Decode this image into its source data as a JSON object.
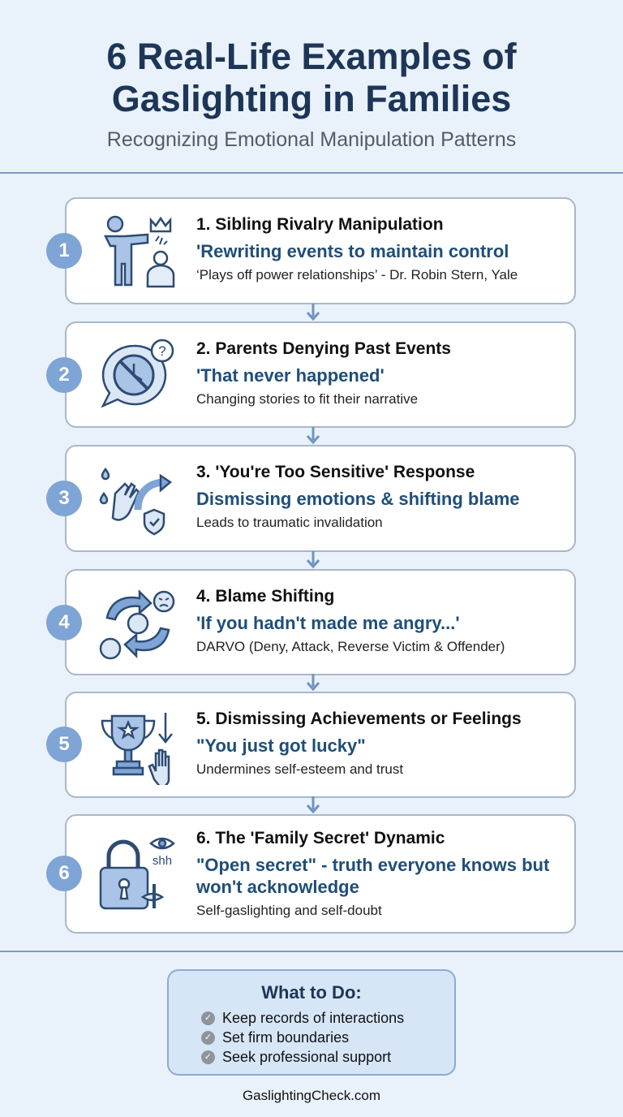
{
  "header": {
    "title_line1": "6 Real-Life Examples of",
    "title_line2": "Gaslighting in Families",
    "subtitle": "Recognizing Emotional Manipulation Patterns"
  },
  "accent_color": "#1f4e79",
  "badge_color": "#7fa4d6",
  "examples": [
    {
      "number": "1",
      "title": "1. Sibling Rivalry Manipulation",
      "quote": "'Rewriting events to maintain control",
      "description": "‘Plays off power relationships’ - Dr. Robin Stern, Yale",
      "icon": "person-pointing-crown-icon"
    },
    {
      "number": "2",
      "title": "2. Parents Denying Past Events",
      "quote": "'That never happened'",
      "description": "Changing stories to fit their narrative",
      "icon": "crossed-clock-question-icon"
    },
    {
      "number": "3",
      "title": "3. 'You're Too Sensitive' Response",
      "quote": "Dismissing emotions & shifting blame",
      "description": "Leads to traumatic invalidation",
      "icon": "hand-tear-shield-icon"
    },
    {
      "number": "4",
      "title": "4. Blame Shifting",
      "quote": "'If you hadn't made me angry...'",
      "description": "DARVO (Deny, Attack, Reverse Victim & Offender)",
      "icon": "cycle-arrows-angry-icon"
    },
    {
      "number": "5",
      "title": "5. Dismissing Achievements or Feelings",
      "quote": "\"You just got lucky\"",
      "description": "Undermines self-esteem and trust",
      "icon": "trophy-down-arrow-icon"
    },
    {
      "number": "6",
      "title": "6. The 'Family Secret' Dynamic",
      "quote": "\"Open secret\" - truth everyone knows but won't acknowledge",
      "description": "Self-gaslighting and self-doubt",
      "icon": "padlock-shh-eye-icon",
      "icon_text": "shh"
    }
  ],
  "what_to_do": {
    "heading": "What to Do:",
    "items": [
      "Keep records of interactions",
      "Set firm boundaries",
      "Seek professional support"
    ]
  },
  "footer": "GaslightingCheck.com"
}
